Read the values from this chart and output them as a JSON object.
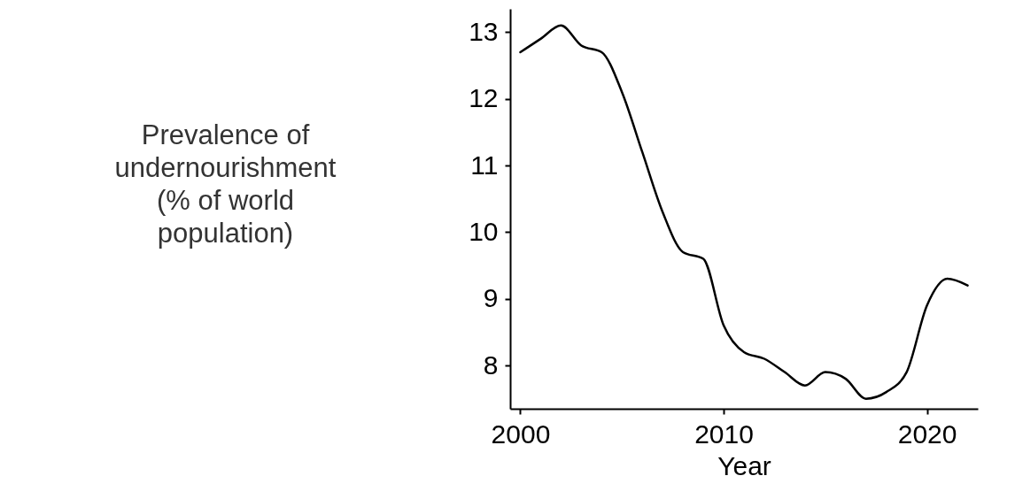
{
  "chart_data": {
    "type": "line",
    "xlabel": "Year",
    "ylabel": "Prevalence of\nundernourishment\n(% of world\npopulation)",
    "x": [
      2000,
      2001,
      2002,
      2003,
      2004,
      2005,
      2006,
      2007,
      2008,
      2009,
      2010,
      2011,
      2012,
      2013,
      2014,
      2015,
      2016,
      2017,
      2018,
      2019,
      2020,
      2021,
      2022
    ],
    "series": [
      {
        "color": "#000000",
        "values": [
          12.7,
          12.9,
          13.1,
          12.8,
          12.7,
          12.1,
          11.2,
          10.3,
          9.7,
          9.6,
          8.6,
          8.2,
          8.1,
          7.9,
          7.7,
          7.9,
          7.8,
          7.5,
          7.6,
          7.9,
          8.9,
          9.3,
          9.2
        ]
      }
    ],
    "xlim": [
      1999.5,
      2022.5
    ],
    "ylim": [
      7.35,
      13.35
    ],
    "xticks": [
      2000,
      2010,
      2020
    ],
    "yticks": [
      8,
      9,
      10,
      11,
      12,
      13
    ],
    "grid": false
  }
}
